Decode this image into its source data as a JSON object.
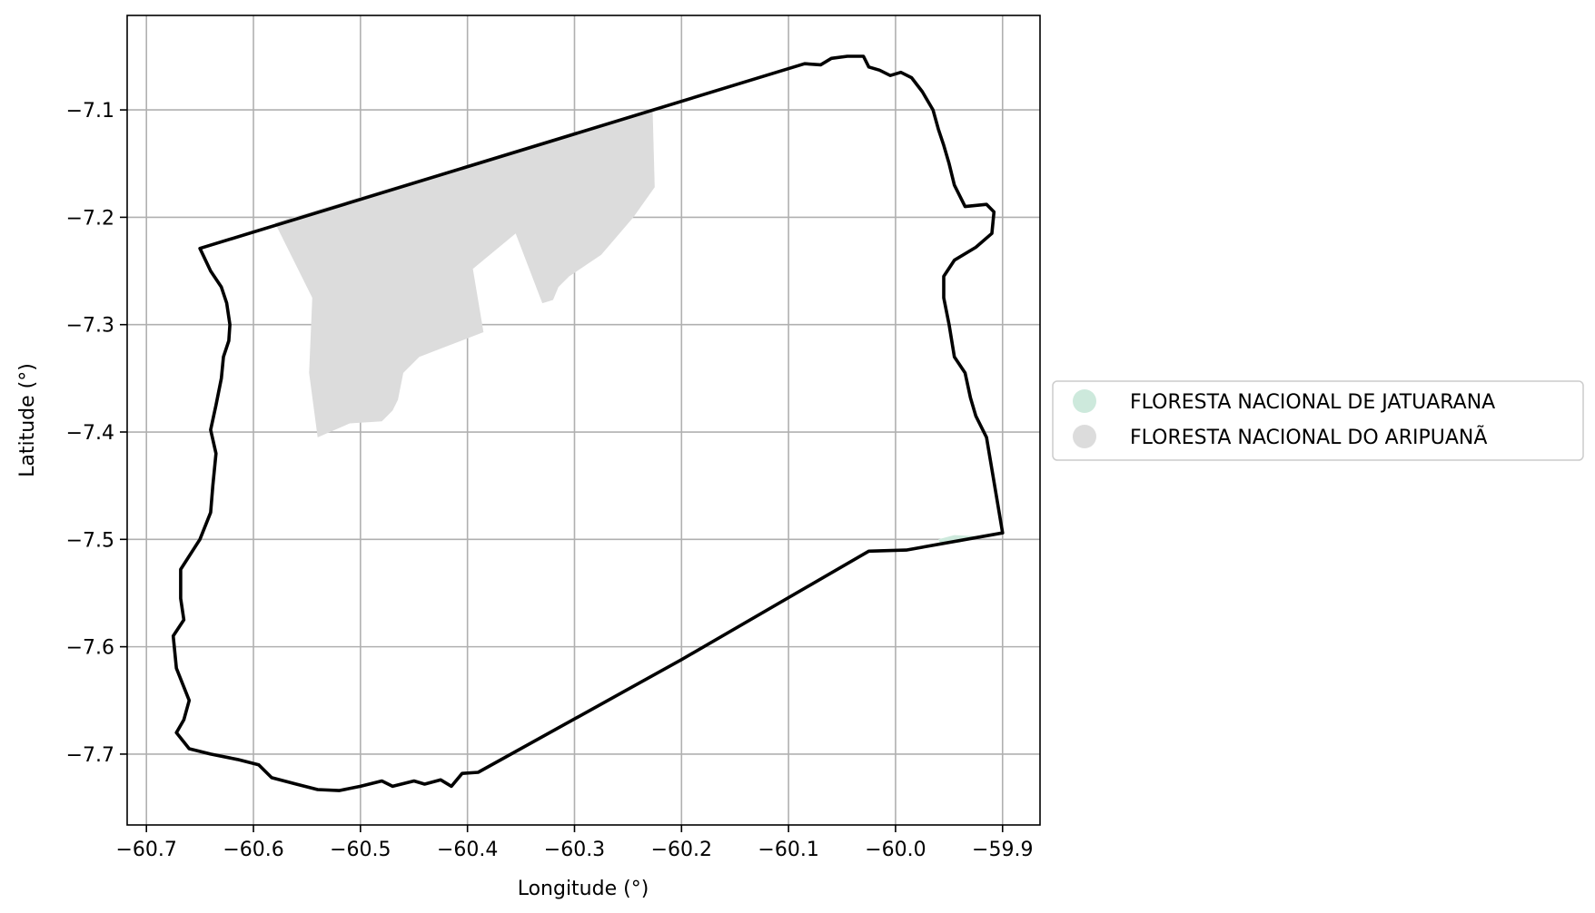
{
  "map": {
    "xlabel": "Longitude (°)",
    "ylabel": "Latitude (°)",
    "xlim": [
      -60.718,
      -59.865
    ],
    "ylim": [
      -7.766,
      -7.012
    ],
    "xticks": [
      -60.7,
      -60.6,
      -60.5,
      -60.4,
      -60.3,
      -60.2,
      -60.1,
      -60.0,
      -59.9
    ],
    "yticks": [
      -7.1,
      -7.2,
      -7.3,
      -7.4,
      -7.5,
      -7.6,
      -7.7
    ],
    "xtick_labels": [
      "−60.7",
      "−60.6",
      "−60.5",
      "−60.4",
      "−60.3",
      "−60.2",
      "−60.1",
      "−60.0",
      "−59.9"
    ],
    "ytick_labels": [
      "−7.1",
      "−7.2",
      "−7.3",
      "−7.4",
      "−7.5",
      "−7.6",
      "−7.7"
    ],
    "grid": true,
    "legend_position": "center-right, outside plot",
    "legend": [
      {
        "label": "FLORESTA NACIONAL DE JATUARANA",
        "color": "#cde9dc"
      },
      {
        "label": "FLORESTA NACIONAL DO ARIPUANÃ",
        "color": "#dcdcdc"
      }
    ],
    "boundary_color": "#000000",
    "boundary": [
      [
        -60.65,
        -7.229
      ],
      [
        -60.64,
        -7.25
      ],
      [
        -60.63,
        -7.265
      ],
      [
        -60.625,
        -7.28
      ],
      [
        -60.622,
        -7.3
      ],
      [
        -60.623,
        -7.315
      ],
      [
        -60.628,
        -7.33
      ],
      [
        -60.63,
        -7.35
      ],
      [
        -60.635,
        -7.375
      ],
      [
        -60.64,
        -7.398
      ],
      [
        -60.635,
        -7.42
      ],
      [
        -60.638,
        -7.45
      ],
      [
        -60.64,
        -7.475
      ],
      [
        -60.65,
        -7.5
      ],
      [
        -60.668,
        -7.528
      ],
      [
        -60.668,
        -7.555
      ],
      [
        -60.665,
        -7.575
      ],
      [
        -60.675,
        -7.59
      ],
      [
        -60.672,
        -7.62
      ],
      [
        -60.66,
        -7.65
      ],
      [
        -60.665,
        -7.668
      ],
      [
        -60.672,
        -7.68
      ],
      [
        -60.66,
        -7.695
      ],
      [
        -60.64,
        -7.7
      ],
      [
        -60.615,
        -7.705
      ],
      [
        -60.595,
        -7.71
      ],
      [
        -60.583,
        -7.722
      ],
      [
        -60.56,
        -7.728
      ],
      [
        -60.54,
        -7.733
      ],
      [
        -60.52,
        -7.734
      ],
      [
        -60.5,
        -7.73
      ],
      [
        -60.48,
        -7.725
      ],
      [
        -60.47,
        -7.73
      ],
      [
        -60.45,
        -7.725
      ],
      [
        -60.44,
        -7.728
      ],
      [
        -60.425,
        -7.724
      ],
      [
        -60.415,
        -7.73
      ],
      [
        -60.405,
        -7.718
      ],
      [
        -60.39,
        -7.717
      ],
      [
        -60.2,
        -7.612
      ],
      [
        -60.025,
        -7.511
      ],
      [
        -59.99,
        -7.51
      ],
      [
        -59.9,
        -7.494
      ],
      [
        -59.915,
        -7.405
      ],
      [
        -59.925,
        -7.385
      ],
      [
        -59.93,
        -7.368
      ],
      [
        -59.935,
        -7.345
      ],
      [
        -59.945,
        -7.33
      ],
      [
        -59.95,
        -7.3
      ],
      [
        -59.955,
        -7.275
      ],
      [
        -59.955,
        -7.255
      ],
      [
        -59.945,
        -7.24
      ],
      [
        -59.925,
        -7.228
      ],
      [
        -59.91,
        -7.215
      ],
      [
        -59.908,
        -7.195
      ],
      [
        -59.915,
        -7.188
      ],
      [
        -59.935,
        -7.19
      ],
      [
        -59.945,
        -7.17
      ],
      [
        -59.95,
        -7.15
      ],
      [
        -59.955,
        -7.133
      ],
      [
        -59.96,
        -7.118
      ],
      [
        -59.965,
        -7.1
      ],
      [
        -59.975,
        -7.083
      ],
      [
        -59.985,
        -7.07
      ],
      [
        -59.995,
        -7.065
      ],
      [
        -60.005,
        -7.068
      ],
      [
        -60.015,
        -7.063
      ],
      [
        -60.025,
        -7.06
      ],
      [
        -60.03,
        -7.05
      ],
      [
        -60.045,
        -7.05
      ],
      [
        -60.06,
        -7.052
      ],
      [
        -60.07,
        -7.058
      ],
      [
        -60.085,
        -7.057
      ],
      [
        -60.65,
        -7.229
      ]
    ],
    "regions": [
      {
        "name": "FLORESTA NACIONAL DO ARIPUANÃ",
        "color": "#dcdcdc",
        "polygon": [
          [
            -60.58,
            -7.205
          ],
          [
            -60.227,
            -7.1
          ],
          [
            -60.225,
            -7.172
          ],
          [
            -60.245,
            -7.2
          ],
          [
            -60.275,
            -7.235
          ],
          [
            -60.305,
            -7.255
          ],
          [
            -60.315,
            -7.265
          ],
          [
            -60.32,
            -7.277
          ],
          [
            -60.33,
            -7.28
          ],
          [
            -60.355,
            -7.215
          ],
          [
            -60.395,
            -7.248
          ],
          [
            -60.385,
            -7.307
          ],
          [
            -60.445,
            -7.33
          ],
          [
            -60.46,
            -7.345
          ],
          [
            -60.465,
            -7.37
          ],
          [
            -60.47,
            -7.38
          ],
          [
            -60.48,
            -7.39
          ],
          [
            -60.51,
            -7.392
          ],
          [
            -60.54,
            -7.405
          ],
          [
            -60.548,
            -7.345
          ],
          [
            -60.545,
            -7.275
          ]
        ]
      },
      {
        "name": "FLORESTA NACIONAL DE JATUARANA",
        "color": "#cde9dc",
        "polygon": [
          [
            -59.96,
            -7.5
          ],
          [
            -59.945,
            -7.496
          ],
          [
            -59.925,
            -7.497
          ],
          [
            -59.94,
            -7.503
          ],
          [
            -59.958,
            -7.504
          ]
        ]
      }
    ]
  }
}
